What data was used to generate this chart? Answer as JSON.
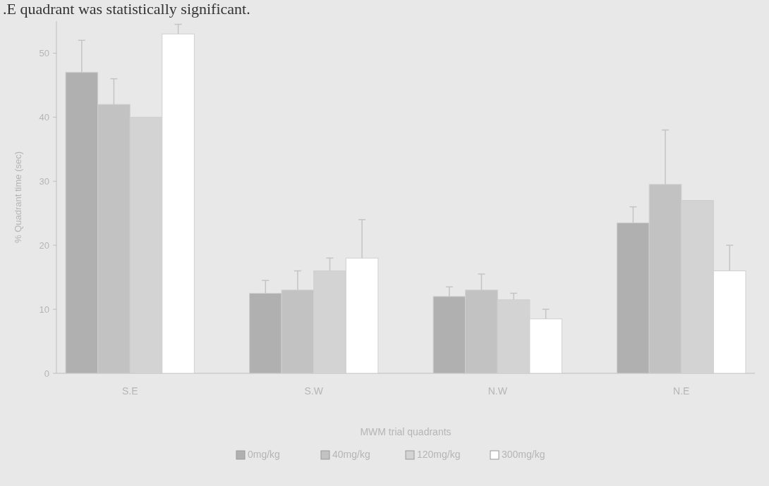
{
  "chart_data": {
    "type": "bar",
    "xlabel": "MWM trial quadrants",
    "ylabel": "% Quadrant time (sec)",
    "categories": [
      "S.E",
      "S.W",
      "N.W",
      "N.E"
    ],
    "series": [
      {
        "name": "0mg/kg",
        "color": "#b0b0b0",
        "values": [
          47,
          12.5,
          12,
          23.5
        ],
        "errors": [
          5,
          2,
          1.5,
          2.5
        ]
      },
      {
        "name": "40mg/kg",
        "color": "#c2c2c2",
        "values": [
          42,
          13,
          13,
          29.5
        ],
        "errors": [
          4,
          3,
          2.5,
          8.5
        ]
      },
      {
        "name": "120mg/kg",
        "color": "#d3d3d3",
        "values": [
          40,
          16,
          11.5,
          27
        ],
        "errors": [
          null,
          2,
          1,
          null
        ]
      },
      {
        "name": "300mg/kg",
        "color": "#ffffff",
        "values": [
          53,
          18,
          8.5,
          16
        ],
        "errors": [
          1.5,
          6,
          1.5,
          4
        ]
      }
    ],
    "ylim": [
      0,
      55
    ],
    "yticks": [
      0,
      10,
      20,
      30,
      40,
      50
    ],
    "legend": "bottom",
    "annotations": [
      ".E quadrant was statistically significant."
    ]
  }
}
